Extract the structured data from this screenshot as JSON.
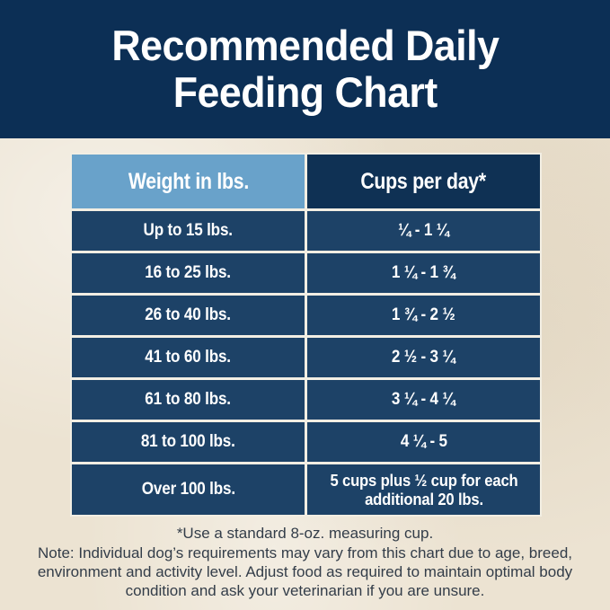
{
  "header": {
    "title_line1": "Recommended Daily",
    "title_line2": "Feeding Chart"
  },
  "chart_data": {
    "type": "table",
    "title": "Recommended Daily Feeding Chart",
    "columns": [
      "Weight in lbs.",
      "Cups per day*"
    ],
    "rows": [
      [
        "Up to 15 lbs.",
        "¼ - 1 ¼"
      ],
      [
        "16 to 25 lbs.",
        "1 ¼ - 1 ¾"
      ],
      [
        "26 to 40 lbs.",
        "1 ¾ - 2 ½"
      ],
      [
        "41 to 60 lbs.",
        "2 ½ - 3 ¼"
      ],
      [
        "61 to 80 lbs.",
        "3 ¼ - 4 ¼"
      ],
      [
        "81 to 100 lbs.",
        "4 ¼ - 5"
      ],
      [
        "Over 100 lbs.",
        "5 cups plus ½ cup for each additional 20 lbs."
      ]
    ],
    "footnote": "*Use a standard 8-oz. measuring cup.",
    "legend_position": "none",
    "grid": "white gridlines on navy cells"
  },
  "footnotes": {
    "cup_note": "*Use a standard 8-oz. measuring cup.",
    "disclaimer_lines": [
      "Note: Individual dog’s requirements may vary from this chart due to age, breed,",
      "environment and activity level. Adjust food as required to maintain optimal body",
      "condition and ask your veterinarian if you are unsure."
    ]
  },
  "colors": {
    "title_band": "#0c2f55",
    "header_weight_cell": "#69a2ca",
    "header_cups_cell": "#0f3154",
    "data_cell": "#1d4267",
    "gridline": "#f2eee3",
    "background": "#ece3d2",
    "table_text": "#ffffff",
    "footnote_text": "#333d49"
  }
}
